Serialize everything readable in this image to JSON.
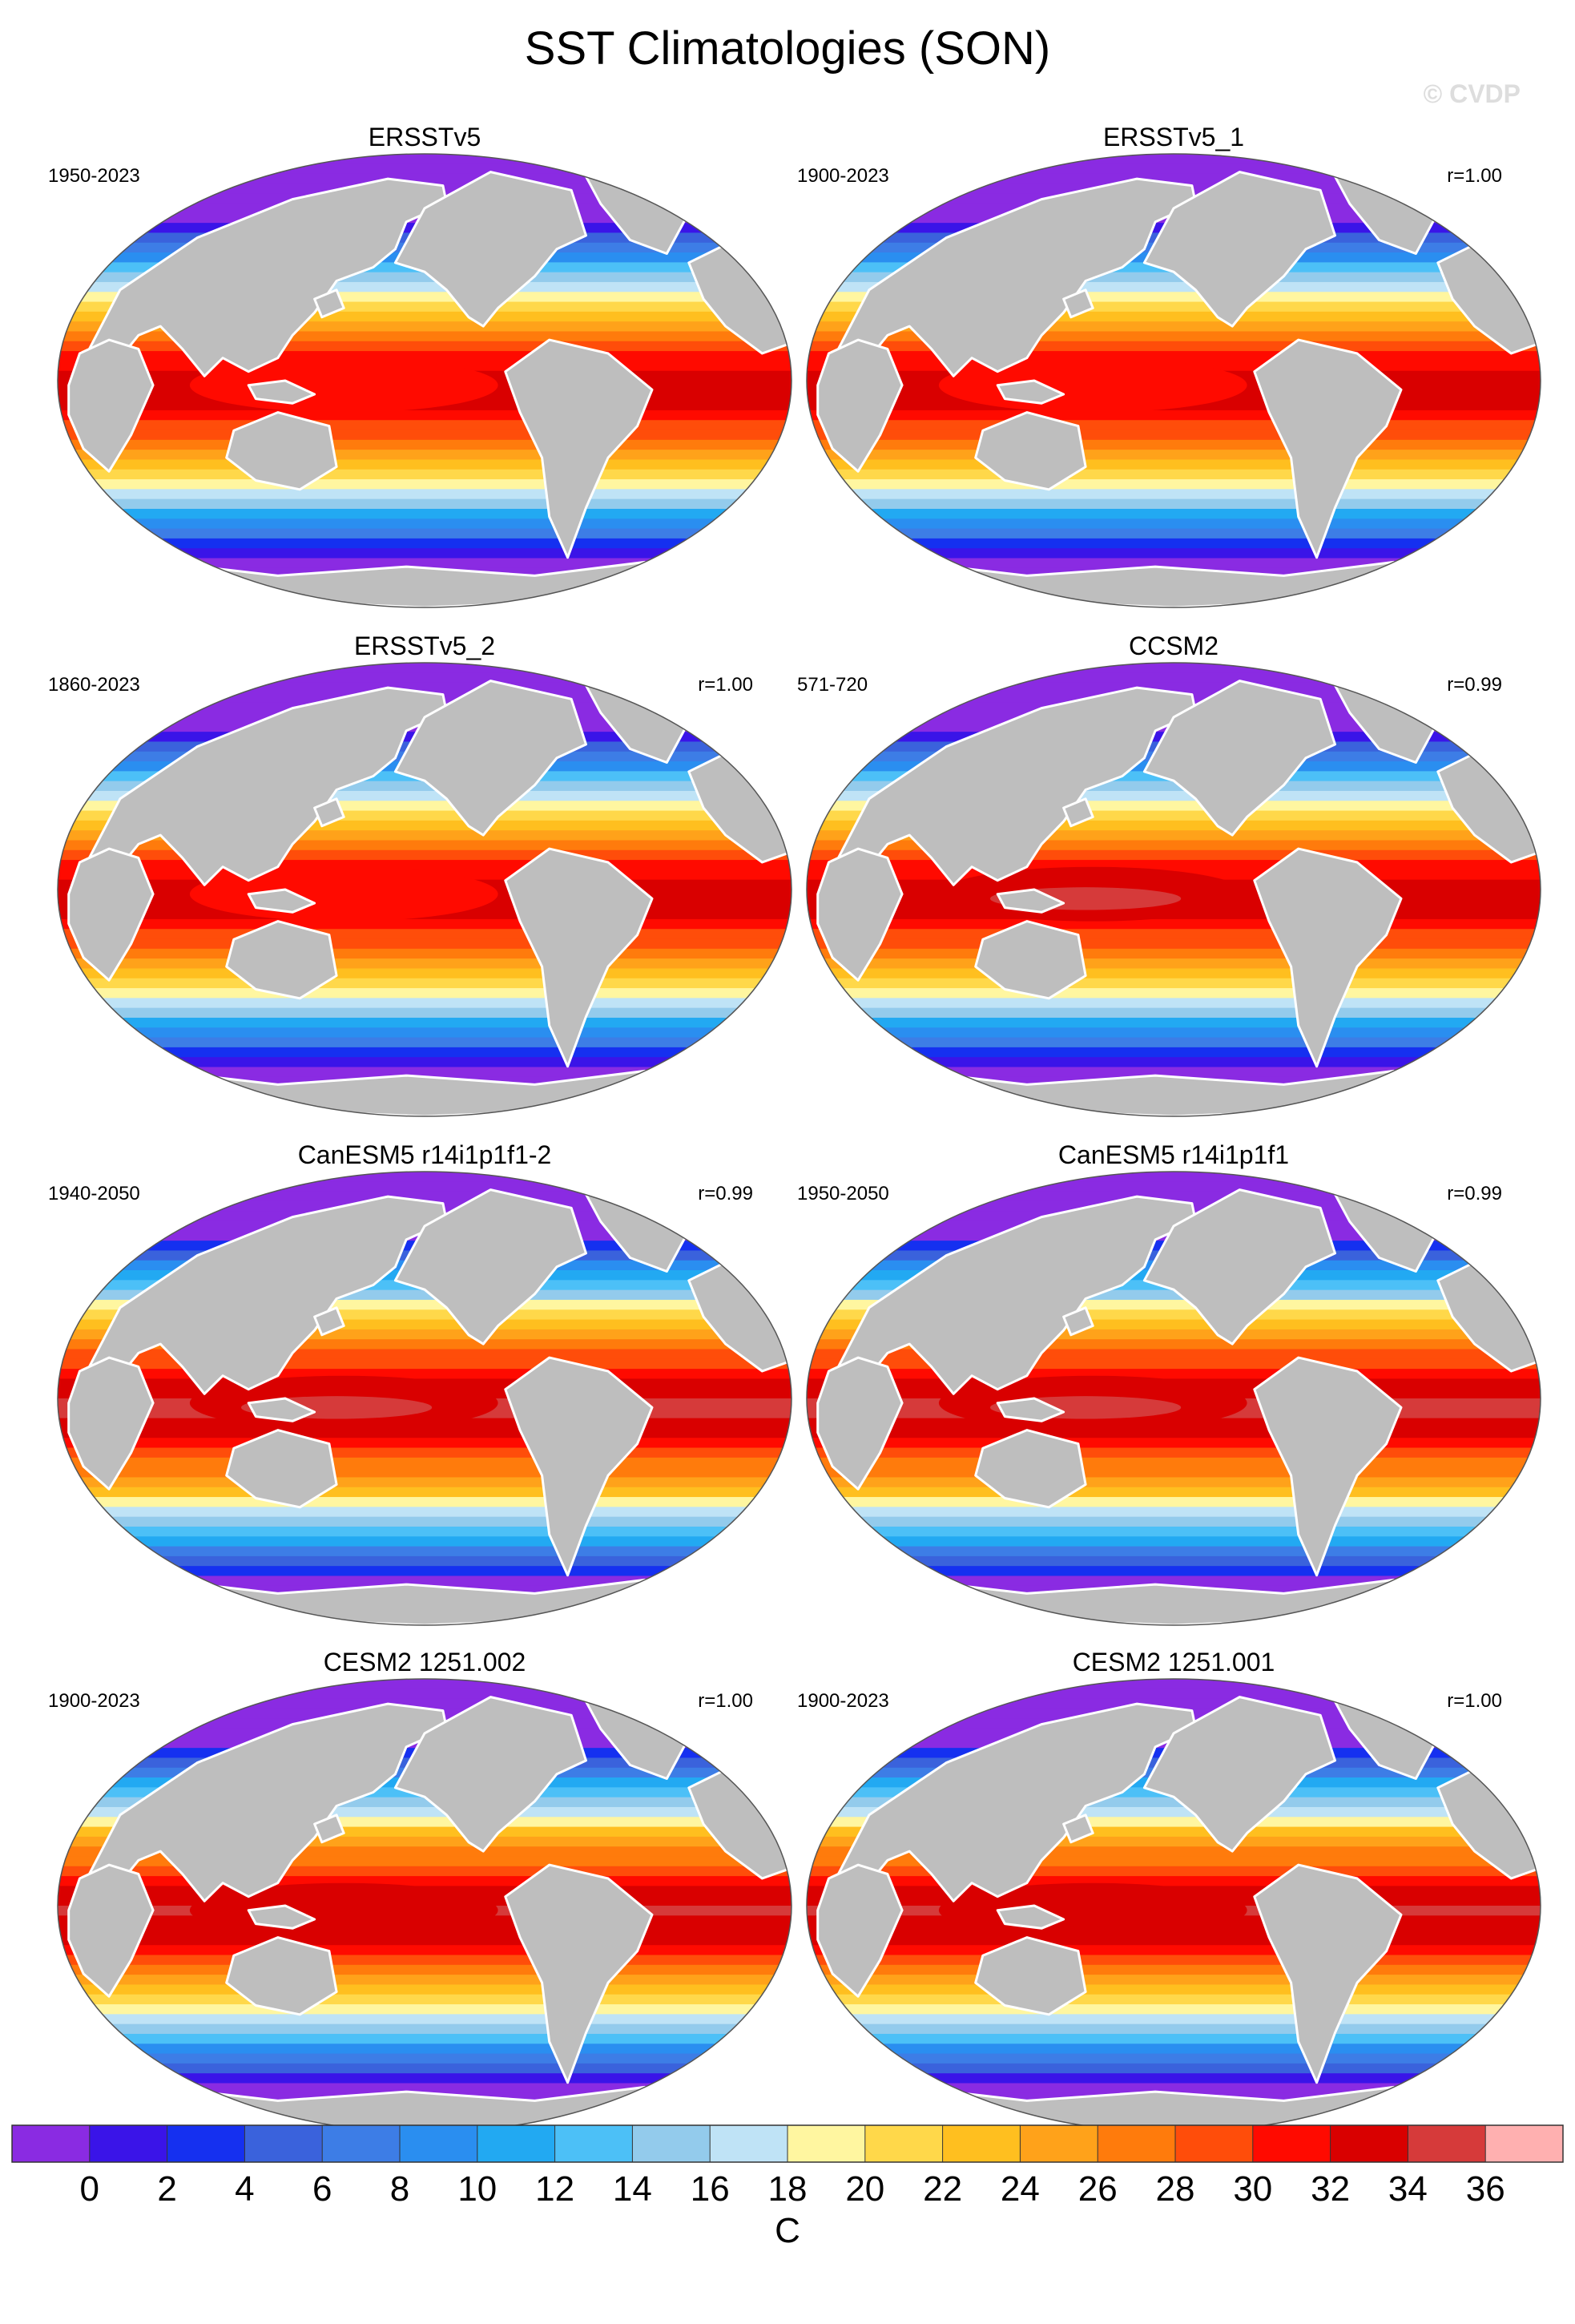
{
  "figure": {
    "title": "SST Climatologies (SON)",
    "watermark": "© CVDP"
  },
  "chart_data": [
    {
      "type": "heatmap",
      "name": "ERSSTv5",
      "years": "1950-2023",
      "r": "",
      "variant": 0
    },
    {
      "type": "heatmap",
      "name": "ERSSTv5_1",
      "years": "1900-2023",
      "r": "r=1.00",
      "variant": 0
    },
    {
      "type": "heatmap",
      "name": "ERSSTv5_2",
      "years": "1860-2023",
      "r": "r=1.00",
      "variant": 0
    },
    {
      "type": "heatmap",
      "name": "CCSM2",
      "years": "571-720",
      "r": "r=0.99",
      "variant": 1
    },
    {
      "type": "heatmap",
      "name": "CanESM5 r14i1p1f1-2",
      "years": "1940-2050",
      "r": "r=0.99",
      "variant": 2
    },
    {
      "type": "heatmap",
      "name": "CanESM5 r14i1p1f1",
      "years": "1950-2050",
      "r": "r=0.99",
      "variant": 2
    },
    {
      "type": "heatmap",
      "name": "CESM2 1251.002",
      "years": "1900-2023",
      "r": "r=1.00",
      "variant": 3
    },
    {
      "type": "heatmap",
      "name": "CESM2 1251.001",
      "years": "1900-2023",
      "r": "r=1.00",
      "variant": 3
    }
  ],
  "colorbar": {
    "unit": "C",
    "levels": [
      "0",
      "2",
      "4",
      "6",
      "8",
      "10",
      "12",
      "14",
      "16",
      "18",
      "20",
      "22",
      "24",
      "26",
      "28",
      "30",
      "32",
      "34",
      "36"
    ],
    "colors": [
      "#8a2be2",
      "#3a14e8",
      "#1530f0",
      "#3a62dc",
      "#3d7de6",
      "#2a8ef0",
      "#22a9f2",
      "#4cc0f7",
      "#93cbec",
      "#bfe3f6",
      "#fff6a0",
      "#ffd84a",
      "#ffbf1f",
      "#ffa21a",
      "#ff7b0c",
      "#ff4d0a",
      "#ff0a00",
      "#d90000",
      "#d63a3a",
      "#ffb0b0"
    ]
  },
  "colors": {
    "land": "#bebebe",
    "coast": "#ffffff",
    "frame": "#555555"
  }
}
